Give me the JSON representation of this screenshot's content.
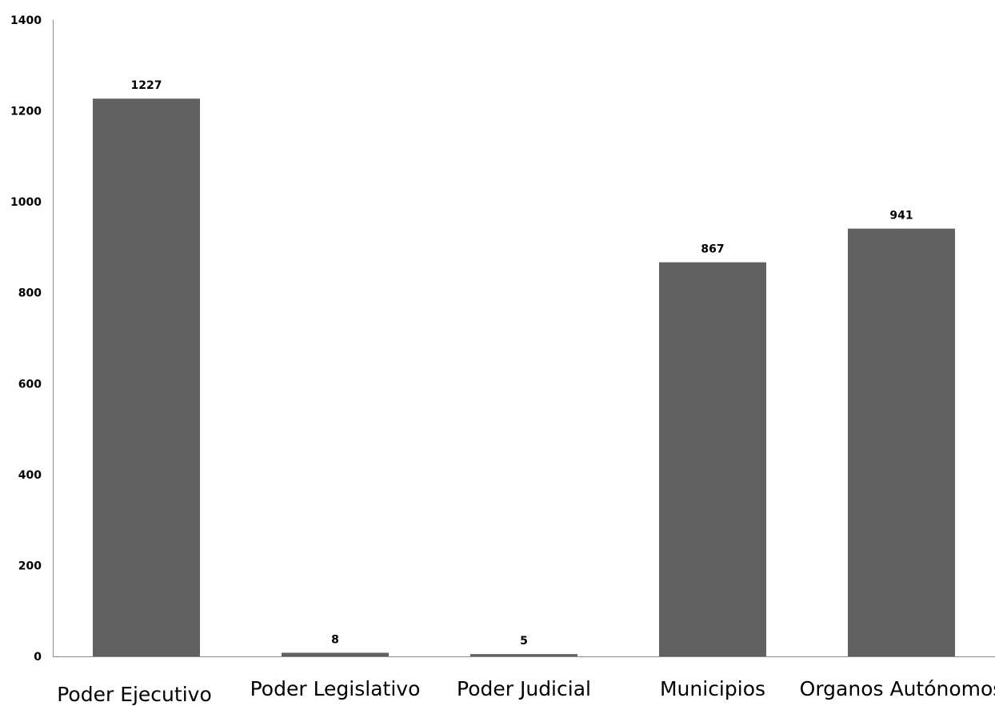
{
  "chart_data": {
    "type": "bar",
    "categories": [
      "Poder Ejecutivo",
      "Poder Legislativo",
      "Poder Judicial",
      "Municipios",
      "Organos Autónomos"
    ],
    "values": [
      1227,
      8,
      5,
      867,
      941
    ],
    "data_labels": [
      "1227",
      "8",
      "5",
      "867",
      "941"
    ],
    "title": "",
    "xlabel": "",
    "ylabel": "",
    "ylim": [
      0,
      1400
    ],
    "yticks": [
      0,
      200,
      400,
      600,
      800,
      1000,
      1200,
      1400
    ],
    "grid": false,
    "legend": "none",
    "bar_color": "#616161"
  }
}
